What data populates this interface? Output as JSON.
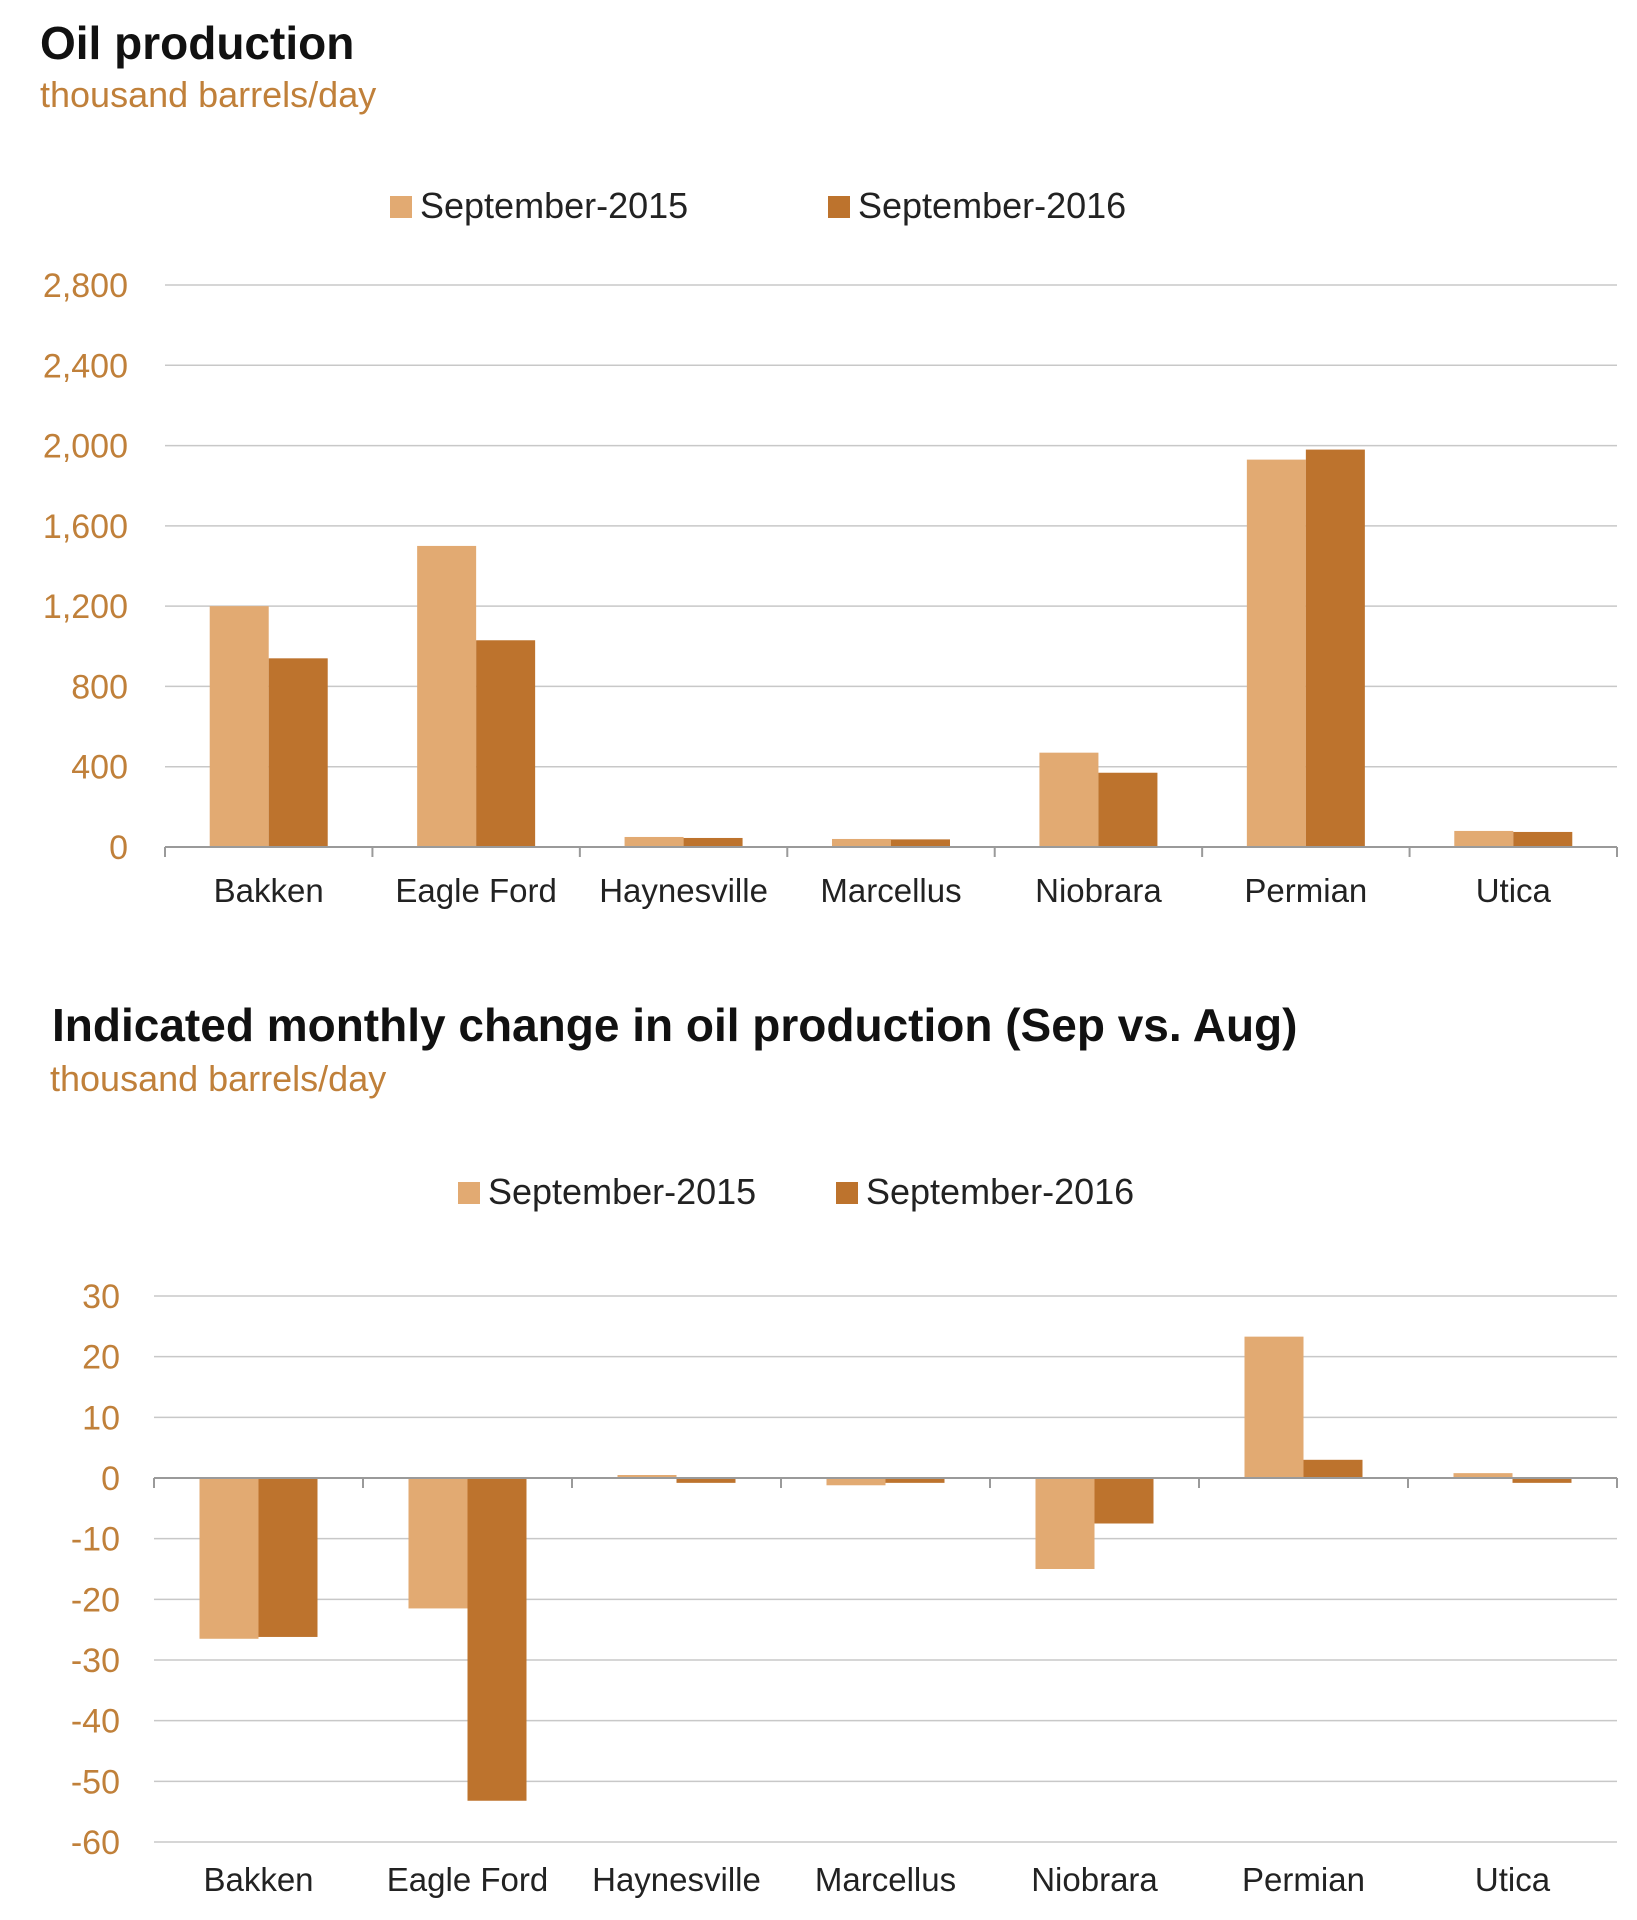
{
  "colors": {
    "series_2015": "#e2aa72",
    "series_2016": "#bd732d",
    "grid": "#c8c8c8",
    "axis": "#9a9a9a"
  },
  "chart_data": [
    {
      "type": "bar",
      "title": "Oil production",
      "subtitle": "thousand barrels/day",
      "categories": [
        "Bakken",
        "Eagle Ford",
        "Haynesville",
        "Marcellus",
        "Niobrara",
        "Permian",
        "Utica"
      ],
      "series": [
        {
          "name": "September-2015",
          "values": [
            1200,
            1500,
            50,
            40,
            470,
            1930,
            80
          ]
        },
        {
          "name": "September-2016",
          "values": [
            940,
            1030,
            45,
            38,
            370,
            1980,
            75
          ]
        }
      ],
      "ylim": [
        0,
        2800
      ],
      "yticks": [
        0,
        400,
        800,
        1200,
        1600,
        2000,
        2400,
        2800
      ],
      "ytick_labels": [
        "0",
        "400",
        "800",
        "1,200",
        "1,600",
        "2,000",
        "2,400",
        "2,800"
      ],
      "legend_position": "top-center",
      "grid": true
    },
    {
      "type": "bar",
      "title": "Indicated monthly change in oil production (Sep vs. Aug)",
      "subtitle": "thousand barrels/day",
      "categories": [
        "Bakken",
        "Eagle Ford",
        "Haynesville",
        "Marcellus",
        "Niobrara",
        "Permian",
        "Utica"
      ],
      "series": [
        {
          "name": "September-2015",
          "values": [
            -26.5,
            -21.5,
            0,
            -1.2,
            -15,
            23.3,
            0.8
          ]
        },
        {
          "name": "September-2016",
          "values": [
            -26.2,
            -53.2,
            -0.8,
            -0.8,
            -7.5,
            3,
            -0.8
          ]
        }
      ],
      "ylim": [
        -60,
        30
      ],
      "yticks": [
        -60,
        -50,
        -40,
        -30,
        -20,
        -10,
        0,
        10,
        20,
        30
      ],
      "ytick_labels": [
        "-60",
        "-50",
        "-40",
        "-30",
        "-20",
        "-10",
        "0",
        "10",
        "20",
        "30"
      ],
      "legend_position": "top-center",
      "grid": true
    }
  ]
}
